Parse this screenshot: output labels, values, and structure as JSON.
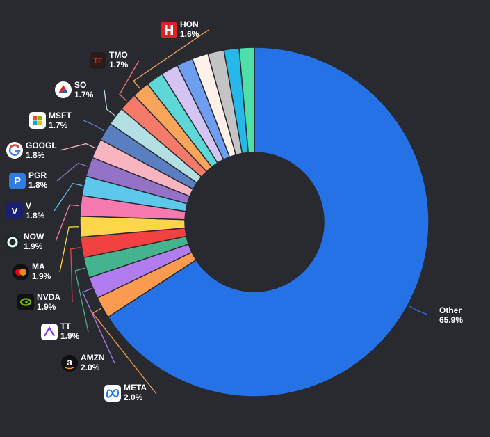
{
  "chart_data": {
    "type": "pie",
    "title": "",
    "donut": true,
    "value_unit": "%",
    "slices": [
      {
        "label": "Other",
        "value": 65.9,
        "value_label": "65.9%",
        "color": "#2571e6",
        "labeled": true,
        "icon": ""
      },
      {
        "label": "META",
        "value": 2.0,
        "value_label": "2.0%",
        "color": "#fb9b4f",
        "labeled": true,
        "icon": "meta-logo"
      },
      {
        "label": "AMZN",
        "value": 2.0,
        "value_label": "2.0%",
        "color": "#b07cf0",
        "labeled": true,
        "icon": "amazon-logo"
      },
      {
        "label": "TT",
        "value": 1.9,
        "value_label": "1.9%",
        "color": "#44b38e",
        "labeled": true,
        "icon": "trane-logo"
      },
      {
        "label": "NVDA",
        "value": 1.9,
        "value_label": "1.9%",
        "color": "#f24141",
        "labeled": true,
        "icon": "nvidia-logo"
      },
      {
        "label": "MA",
        "value": 1.9,
        "value_label": "1.9%",
        "color": "#ffd54a",
        "labeled": true,
        "icon": "mastercard-logo"
      },
      {
        "label": "NOW",
        "value": 1.9,
        "value_label": "1.9%",
        "color": "#f67ab0",
        "labeled": true,
        "icon": "servicenow-logo"
      },
      {
        "label": "V",
        "value": 1.8,
        "value_label": "1.8%",
        "color": "#5bc8ec",
        "labeled": true,
        "icon": "visa-logo"
      },
      {
        "label": "PGR",
        "value": 1.8,
        "value_label": "1.8%",
        "color": "#9372c8",
        "labeled": true,
        "icon": "progressive-logo"
      },
      {
        "label": "GOOGL",
        "value": 1.8,
        "value_label": "1.8%",
        "color": "#f8b5c0",
        "labeled": true,
        "icon": "google-logo"
      },
      {
        "label": "MSFT",
        "value": 1.7,
        "value_label": "1.7%",
        "color": "#5a7fc0",
        "labeled": true,
        "icon": "microsoft-logo"
      },
      {
        "label": "SO",
        "value": 1.7,
        "value_label": "1.7%",
        "color": "#b3dfe3",
        "labeled": true,
        "icon": "southern-company-logo"
      },
      {
        "label": "TMO",
        "value": 1.7,
        "value_label": "1.7%",
        "color": "#f57a6a",
        "labeled": true,
        "icon": "thermo-fisher-logo"
      },
      {
        "label": "HON",
        "value": 1.6,
        "value_label": "1.6%",
        "color": "#f6a55b",
        "labeled": true,
        "icon": "honeywell-logo"
      },
      {
        "label": "",
        "value": 1.6,
        "value_label": "",
        "color": "#5dd8d6",
        "labeled": false,
        "icon": ""
      },
      {
        "label": "",
        "value": 1.6,
        "value_label": "",
        "color": "#d3c4f2",
        "labeled": false,
        "icon": ""
      },
      {
        "label": "",
        "value": 1.5,
        "value_label": "",
        "color": "#6e9ef0",
        "labeled": false,
        "icon": ""
      },
      {
        "label": "",
        "value": 1.5,
        "value_label": "",
        "color": "#fff1ea",
        "labeled": false,
        "icon": ""
      },
      {
        "label": "",
        "value": 1.5,
        "value_label": "",
        "color": "#c4c4c4",
        "labeled": false,
        "icon": ""
      },
      {
        "label": "",
        "value": 1.4,
        "value_label": "",
        "color": "#26b8e8",
        "labeled": false,
        "icon": ""
      },
      {
        "label": "",
        "value": 1.4,
        "value_label": "",
        "color": "#4fe0a8",
        "labeled": false,
        "icon": ""
      }
    ]
  }
}
